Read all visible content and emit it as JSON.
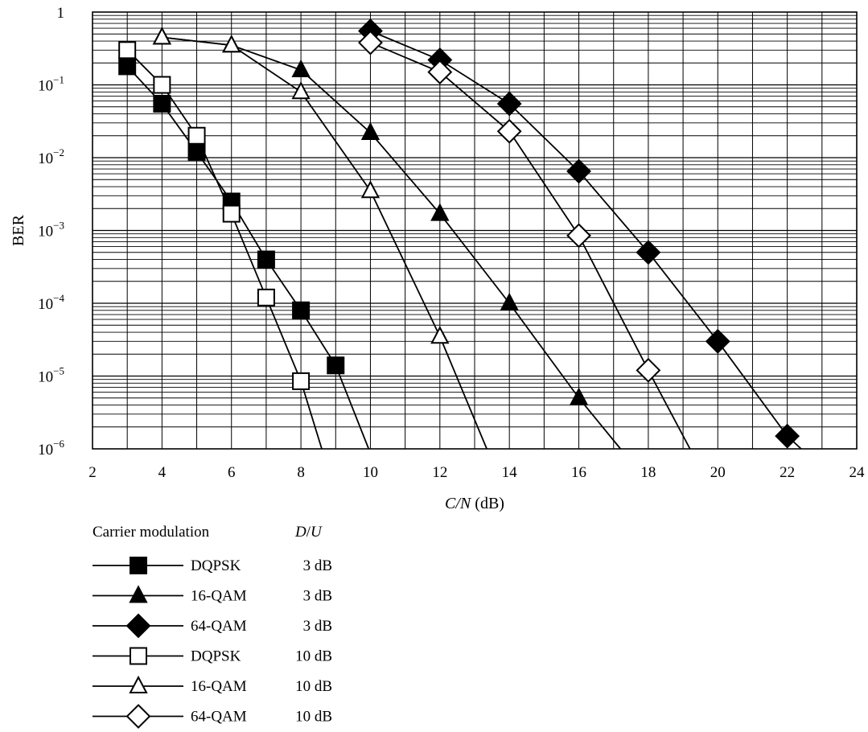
{
  "chart_data": {
    "type": "line",
    "xlabel": {
      "italic": "C/N",
      "rest": " (dB)"
    },
    "ylabel": "BER",
    "xlim": [
      2,
      24
    ],
    "ylim": [
      1e-06,
      1
    ],
    "y_scale": "log",
    "grid": true,
    "x_ticks": [
      "2",
      "4",
      "6",
      "8",
      "10",
      "12",
      "14",
      "16",
      "18",
      "20",
      "22",
      "24"
    ],
    "y_ticks": [
      {
        "base": "1",
        "exp": ""
      },
      {
        "base": "10",
        "exp": "−1"
      },
      {
        "base": "10",
        "exp": "−2"
      },
      {
        "base": "10",
        "exp": "−3"
      },
      {
        "base": "10",
        "exp": "−4"
      },
      {
        "base": "10",
        "exp": "−5"
      },
      {
        "base": "10",
        "exp": "−6"
      }
    ],
    "legend": {
      "placement": "below",
      "header_left": "Carrier modulation",
      "header_right": {
        "italic_1": "D",
        "slash": "/",
        "italic_2": "U"
      }
    },
    "series": [
      {
        "name": "DQPSK",
        "du": "3 dB",
        "marker": "square",
        "filled": true,
        "x": [
          3,
          4,
          5,
          6,
          7,
          8,
          9,
          9.95
        ],
        "y": [
          0.18,
          0.055,
          0.012,
          0.0025,
          0.0004,
          8e-05,
          1.4e-05,
          1e-06
        ]
      },
      {
        "name": "16-QAM",
        "du": "3 dB",
        "marker": "triangle",
        "filled": true,
        "x": [
          4,
          6,
          8,
          10,
          12,
          14,
          16,
          17.2
        ],
        "y": [
          0.45,
          0.35,
          0.16,
          0.022,
          0.0017,
          0.0001,
          5e-06,
          1e-06
        ]
      },
      {
        "name": "64-QAM",
        "du": "3 dB",
        "marker": "diamond",
        "filled": true,
        "x": [
          10,
          12,
          14,
          16,
          18,
          20,
          22,
          22.4
        ],
        "y": [
          0.55,
          0.22,
          0.055,
          0.0065,
          0.0005,
          3e-05,
          1.5e-06,
          1e-06
        ]
      },
      {
        "name": "DQPSK",
        "du": "10 dB",
        "marker": "square",
        "filled": false,
        "x": [
          3,
          4,
          5,
          6,
          7,
          8,
          8.6
        ],
        "y": [
          0.3,
          0.1,
          0.02,
          0.0017,
          0.00012,
          8.5e-06,
          1e-06
        ]
      },
      {
        "name": "16-QAM",
        "du": "10 dB",
        "marker": "triangle",
        "filled": false,
        "x": [
          4,
          6,
          8,
          10,
          12,
          13.35
        ],
        "y": [
          0.45,
          0.35,
          0.08,
          0.0035,
          3.5e-05,
          1e-06
        ]
      },
      {
        "name": "64-QAM",
        "du": "10 dB",
        "marker": "diamond",
        "filled": false,
        "x": [
          10,
          12,
          14,
          16,
          18,
          19.2
        ],
        "y": [
          0.38,
          0.15,
          0.023,
          0.00085,
          1.2e-05,
          1e-06
        ]
      }
    ]
  }
}
